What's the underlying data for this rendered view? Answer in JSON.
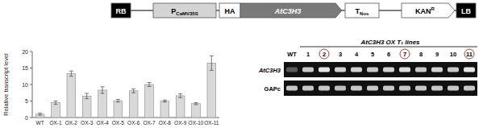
{
  "chart_data": {
    "type": "bar",
    "y_label": "Relative transcript level",
    "categories": [
      "WT",
      "OX-1",
      "OX-2",
      "OX-3",
      "OX-4",
      "OX-5",
      "OX-6",
      "OX-7",
      "OX-8",
      "OX-9",
      "OX-10",
      "OX-11"
    ],
    "values": [
      1,
      4.5,
      13.3,
      6.5,
      8.3,
      5.1,
      8.1,
      10,
      5,
      6.6,
      4.2,
      16.5
    ],
    "errors": [
      0.3,
      0.5,
      0.8,
      0.8,
      1.0,
      0.4,
      0.6,
      0.6,
      0.3,
      0.6,
      0.3,
      2.2
    ],
    "color": "#d9d9d9",
    "ylim": [
      0,
      20
    ],
    "yticks": [
      0,
      5,
      10,
      15,
      20
    ],
    "grid": false
  },
  "construct": {
    "elements": [
      {
        "main": "RB",
        "shape": "box",
        "color": "#000000"
      },
      {
        "main": "P",
        "sub": "CaMV35S",
        "shape": "box",
        "color": "#d4d4d4"
      },
      {
        "main": "HA",
        "shape": "box",
        "color": "#ffffff"
      },
      {
        "main": "AtC3H3",
        "shape": "arrow",
        "color": "#7a7a7a"
      },
      {
        "main": "T",
        "sub": "Nos",
        "shape": "box",
        "color": "#ffffff"
      },
      {
        "main": "KAN",
        "sup": "R",
        "shape": "arrow",
        "color": "#ffffff"
      },
      {
        "main": "LB",
        "shape": "box",
        "color": "#000000"
      }
    ]
  },
  "gel": {
    "title": "AtC3H3 OX T₁ lines",
    "lanes": [
      "WT",
      "1",
      "2",
      "3",
      "4",
      "5",
      "6",
      "7",
      "8",
      "9",
      "10",
      "11"
    ],
    "circled": [
      false,
      false,
      true,
      false,
      false,
      false,
      false,
      true,
      false,
      false,
      false,
      true
    ],
    "rows": [
      {
        "label": "AtC3H3",
        "intensity": [
          0.25,
          0.8,
          0.95,
          0.85,
          0.85,
          0.8,
          0.85,
          0.9,
          0.8,
          0.85,
          0.8,
          0.95
        ]
      },
      {
        "label": "GAPc",
        "intensity": [
          0.8,
          0.8,
          0.8,
          0.75,
          0.8,
          0.8,
          0.8,
          0.8,
          0.8,
          0.8,
          0.8,
          0.8
        ]
      }
    ]
  }
}
